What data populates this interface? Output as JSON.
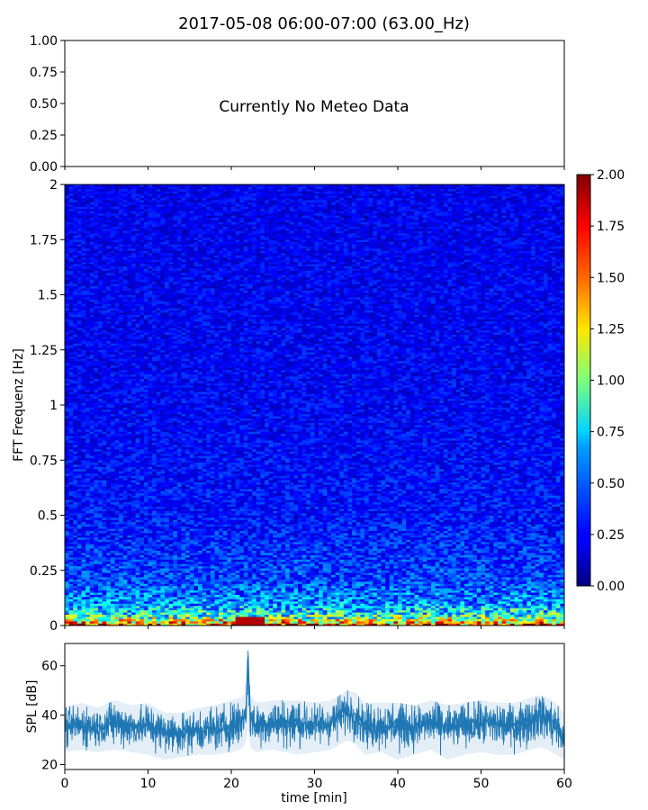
{
  "title": "2017-05-08 06:00-07:00 (63.00_Hz)",
  "chart_data": [
    {
      "type": "line",
      "panel": "meteo",
      "message": "Currently No Meteo Data",
      "ylim": [
        0,
        1
      ],
      "yticks": [
        "0.00",
        "0.25",
        "0.50",
        "0.75",
        "1.00"
      ],
      "xlim": [
        0,
        60
      ]
    },
    {
      "type": "heatmap",
      "panel": "spectrogram",
      "ylabel": "FFT Frequenz [Hz]",
      "ylim": [
        0,
        2
      ],
      "yticks": [
        {
          "value": 0,
          "label": "0"
        },
        {
          "value": 0.25,
          "label": "0.25"
        },
        {
          "value": 0.5,
          "label": "0.5"
        },
        {
          "value": 0.75,
          "label": "0.75"
        },
        {
          "value": 1,
          "label": "1"
        },
        {
          "value": 1.25,
          "label": "1.25"
        },
        {
          "value": 1.5,
          "label": "1.5"
        },
        {
          "value": 1.75,
          "label": "1.75"
        },
        {
          "value": 2,
          "label": "2"
        }
      ],
      "xlim": [
        0,
        60
      ],
      "colormap": "jet",
      "colorbar": {
        "range": [
          0,
          2
        ],
        "ticks": [
          "0.00",
          "0.25",
          "0.50",
          "0.75",
          "1.00",
          "1.25",
          "1.50",
          "1.75",
          "2.00"
        ]
      },
      "typical_level_by_frequency": [
        {
          "f": 0.0,
          "level": 1.6
        },
        {
          "f": 0.02,
          "level": 1.2
        },
        {
          "f": 0.05,
          "level": 0.8
        },
        {
          "f": 0.1,
          "level": 0.55
        },
        {
          "f": 0.2,
          "level": 0.38
        },
        {
          "f": 0.5,
          "level": 0.28
        },
        {
          "f": 1.0,
          "level": 0.24
        },
        {
          "f": 2.0,
          "level": 0.22
        }
      ]
    },
    {
      "type": "line",
      "panel": "spl",
      "ylabel": "SPL [dB]",
      "xlabel": "time [min]",
      "ylim": [
        18,
        69
      ],
      "xlim": [
        0,
        60
      ],
      "yticks": [
        20,
        40,
        60
      ],
      "xticks": [
        0,
        10,
        20,
        30,
        40,
        50,
        60
      ],
      "series": [
        {
          "color": "#1f77b4",
          "x": [
            0,
            2,
            4,
            6,
            8,
            10,
            12,
            14,
            16,
            18,
            20,
            21,
            21.5,
            21.8,
            22,
            22.3,
            23,
            25,
            28,
            30,
            32,
            33,
            34,
            35,
            36,
            38,
            40,
            42,
            44,
            46,
            48,
            50,
            52,
            54,
            56,
            57,
            58,
            59,
            60
          ],
          "mean": [
            35,
            36,
            35,
            37,
            35,
            36,
            33,
            33,
            34,
            34,
            36,
            37,
            38,
            45,
            62,
            38,
            36,
            37,
            37,
            36,
            37,
            40,
            42,
            40,
            36,
            36,
            36,
            35,
            37,
            35,
            36,
            37,
            36,
            36,
            38,
            40,
            38,
            36,
            30
          ],
          "min": [
            25,
            26,
            25,
            26,
            25,
            24,
            22,
            23,
            24,
            24,
            25,
            26,
            27,
            30,
            34,
            27,
            25,
            26,
            24,
            25,
            26,
            28,
            30,
            28,
            24,
            25,
            22,
            24,
            26,
            22,
            24,
            25,
            24,
            24,
            26,
            27,
            26,
            24,
            22
          ],
          "max": [
            43,
            45,
            43,
            46,
            44,
            45,
            41,
            41,
            43,
            44,
            46,
            47,
            48,
            56,
            66,
            48,
            45,
            46,
            46,
            45,
            46,
            48,
            50,
            49,
            45,
            45,
            45,
            44,
            46,
            44,
            45,
            46,
            45,
            45,
            47,
            48,
            47,
            45,
            40
          ]
        }
      ]
    }
  ]
}
